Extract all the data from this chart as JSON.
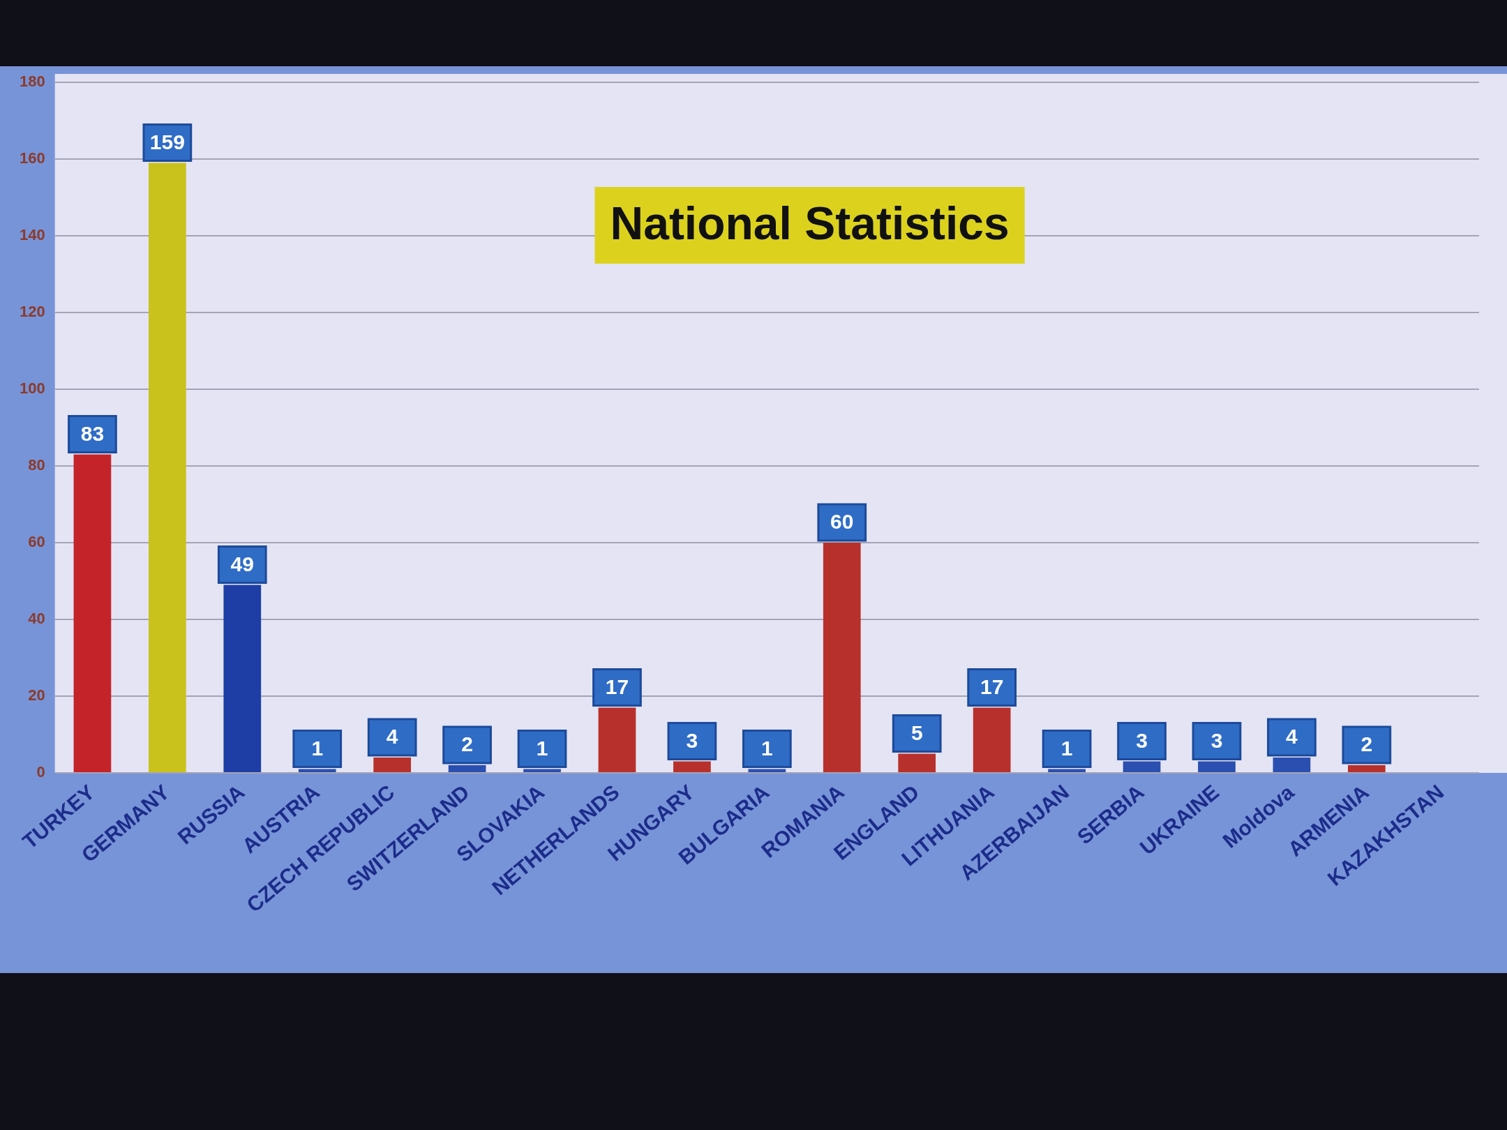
{
  "chart_data": {
    "type": "bar",
    "title": "National Statistics",
    "categories": [
      "TURKEY",
      "GERMANY",
      "RUSSIA",
      "AUSTRIA",
      "CZECH REPUBLIC",
      "SWITZERLAND",
      "SLOVAKIA",
      "NETHERLANDS",
      "HUNGARY",
      "BULGARIA",
      "ROMANIA",
      "ENGLAND",
      "LITHUANIA",
      "AZERBAIJAN",
      "SERBIA",
      "UKRAINE",
      "Moldova",
      "ARMENIA",
      "KAZAKHSTAN"
    ],
    "values": [
      83,
      159,
      49,
      1,
      4,
      2,
      1,
      17,
      3,
      1,
      60,
      5,
      17,
      1,
      3,
      3,
      4,
      2,
      null
    ],
    "colors": [
      "#c4232a",
      "#c9c21c",
      "#1e3ea6",
      "#2a4fb0",
      "#b8302c",
      "#2a4fb0",
      "#2a4fb0",
      "#b8302c",
      "#b8302c",
      "#2a4fb0",
      "#b8302c",
      "#b8302c",
      "#b8302c",
      "#2a4fb0",
      "#2a4fb0",
      "#2a4fb0",
      "#2a4fb0",
      "#b8302c",
      "#b8302c"
    ],
    "ylim": [
      0,
      180
    ],
    "yticks": [
      0,
      20,
      40,
      60,
      80,
      100,
      120,
      140,
      160,
      180
    ],
    "grid": "y",
    "data_labels": true
  }
}
